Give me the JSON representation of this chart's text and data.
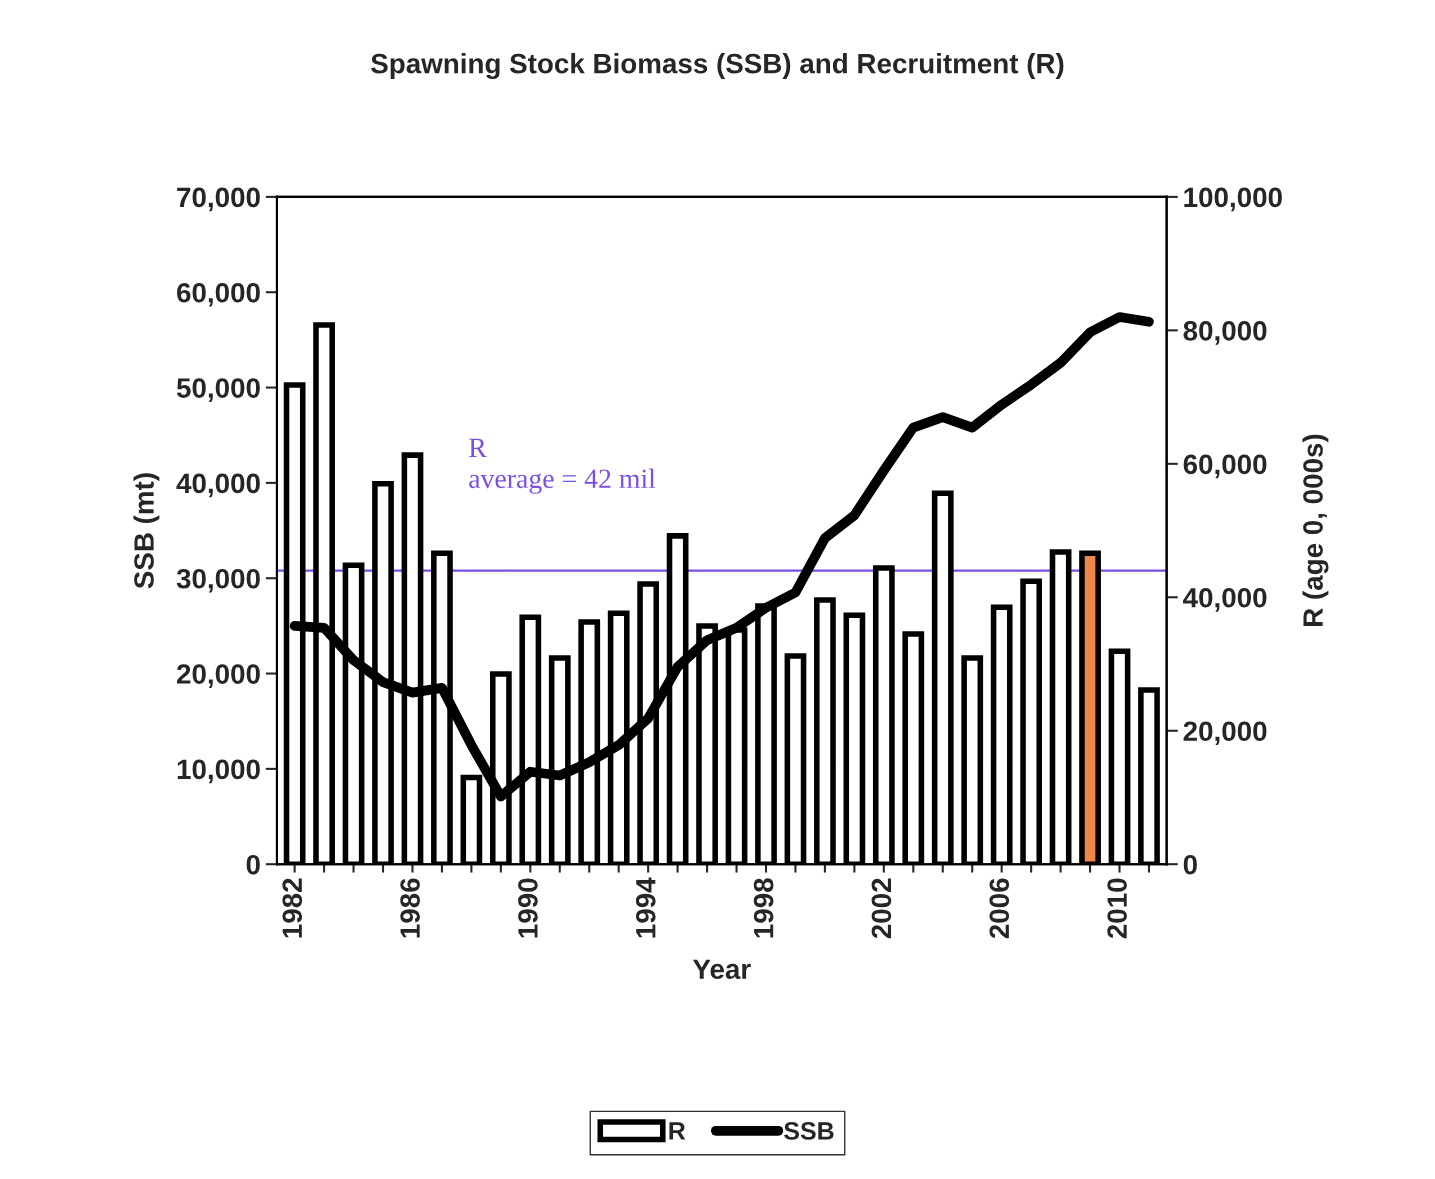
{
  "chart_data": {
    "type": "bar",
    "title": "Spawning Stock Biomass (SSB) and Recruitment (R)",
    "xlabel": "Year",
    "ylabel": "SSB (mt)",
    "y2label": "R (age 0, 000s)",
    "categories": [
      "1982",
      null,
      null,
      null,
      "1986",
      null,
      null,
      null,
      "1990",
      null,
      null,
      null,
      "1994",
      null,
      null,
      null,
      "1998",
      null,
      null,
      null,
      "2002",
      null,
      null,
      null,
      "2006",
      null,
      null,
      null,
      "2010",
      null
    ],
    "series": [
      {
        "name": "R",
        "axis": "y2",
        "color": "#ffffff",
        "colors": [
          "#ffffff",
          "#ffffff",
          "#ffffff",
          "#ffffff",
          "#ffffff",
          "#ffffff",
          "#ffffff",
          "#ffffff",
          "#ffffff",
          "#ffffff",
          "#ffffff",
          "#ffffff",
          "#ffffff",
          "#ffffff",
          "#ffffff",
          "#ffffff",
          "#ffffff",
          "#ffffff",
          "#ffffff",
          "#ffffff",
          "#ffffff",
          "#ffffff",
          "#ffffff",
          "#ffffff",
          "#ffffff",
          "#ffffff",
          "#ffffff",
          "#f0874a",
          "#ffffff",
          "#ffffff"
        ],
        "values": [
          71800,
          80800,
          44800,
          57000,
          61300,
          46600,
          13000,
          28500,
          37000,
          30900,
          36300,
          37600,
          42000,
          49200,
          35700,
          35100,
          38700,
          31200,
          39600,
          37300,
          44400,
          34500,
          55600,
          30900,
          38500,
          42400,
          46800,
          46600,
          31900,
          26100
        ]
      },
      {
        "name": "SSB",
        "type": "line",
        "color": "#000000",
        "values": [
          25000,
          24800,
          21400,
          19100,
          18000,
          18500,
          12500,
          7100,
          9700,
          9300,
          10700,
          12500,
          15300,
          20700,
          23500,
          24800,
          26900,
          28500,
          34200,
          36600,
          41300,
          45800,
          46900,
          45800,
          48200,
          50300,
          52600,
          55800,
          57400,
          56900
        ]
      }
    ],
    "ylim": [
      0,
      70000
    ],
    "yticks": [
      {
        "value": 0,
        "label": "0"
      },
      {
        "value": 10000,
        "label": "10,000"
      },
      {
        "value": 20000,
        "label": "20,000"
      },
      {
        "value": 30000,
        "label": "30,000"
      },
      {
        "value": 40000,
        "label": "40,000"
      },
      {
        "value": 50000,
        "label": "50,000"
      },
      {
        "value": 60000,
        "label": "60,000"
      },
      {
        "value": 70000,
        "label": "70,000"
      }
    ],
    "y2lim": [
      0,
      100000
    ],
    "y2ticks": [
      {
        "value": 0,
        "label": "0"
      },
      {
        "value": 20000,
        "label": "20,000"
      },
      {
        "value": 40000,
        "label": "40,000"
      },
      {
        "value": 60000,
        "label": "60,000"
      },
      {
        "value": 80000,
        "label": "80,000"
      },
      {
        "value": 100000,
        "label": "100,000"
      }
    ],
    "ref_lines": [
      {
        "axis": "y2",
        "value": 44000,
        "color": "#7b4fe0"
      }
    ],
    "annotations": [
      "R\naverage = 42 mil"
    ],
    "grid": false,
    "legend": "bottom",
    "marker": "none",
    "line_style": "solid"
  }
}
